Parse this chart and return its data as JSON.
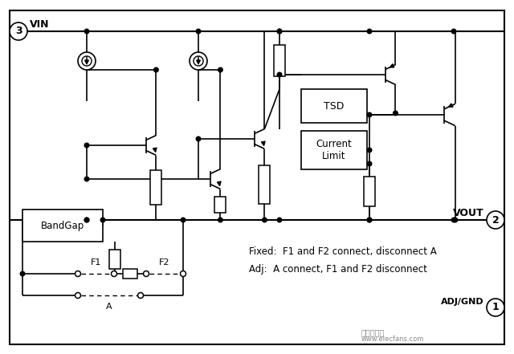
{
  "bg_color": "#ffffff",
  "VIN_label": "VIN",
  "VOUT_label": "VOUT",
  "ADJGND_label": "ADJ/GND",
  "pin3_label": "3",
  "pin2_label": "2",
  "pin1_label": "1",
  "bandgap_label": "BandGap",
  "tsd_label": "TSD",
  "current_limit_label": "Current\nLimit",
  "fixed_text": "Fixed:  F1 and F2 connect, disconnect A",
  "adj_text": "Adj:  A connect, F1 and F2 disconnect",
  "F1_label": "F1",
  "F2_label": "F2",
  "A_label": "A"
}
